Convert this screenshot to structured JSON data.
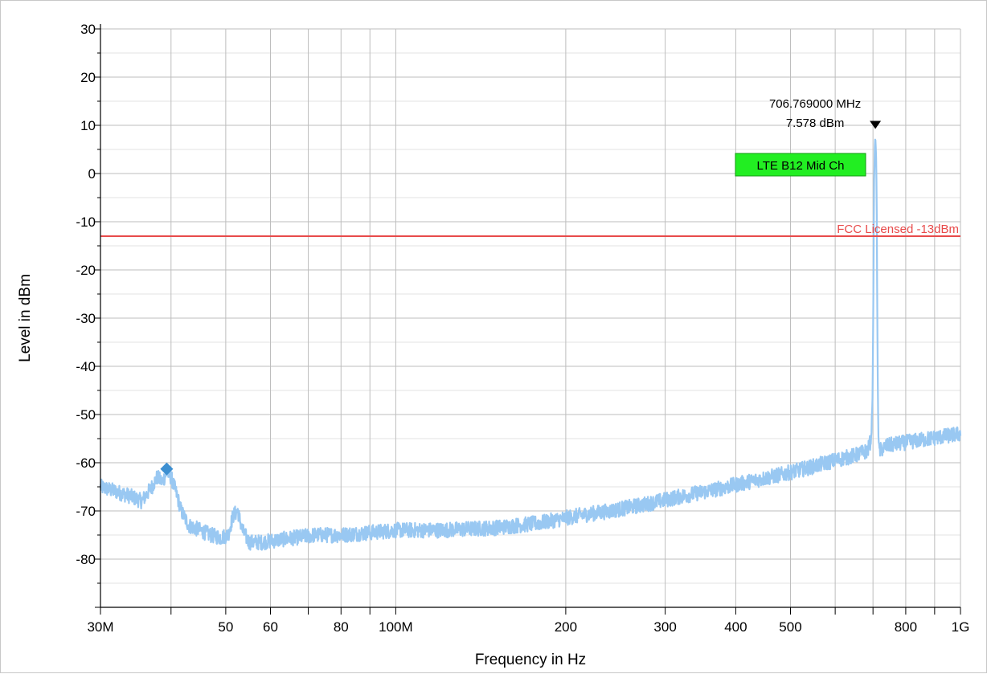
{
  "chart_data": {
    "type": "line",
    "xlabel": "Frequency in Hz",
    "ylabel": "Level in dBm",
    "x_scale": "log",
    "xlim_hz": [
      30000000,
      1000000000
    ],
    "ylim": [
      -90,
      30
    ],
    "grid": true,
    "x_ticks": [
      {
        "value": 30000000,
        "label": "30M"
      },
      {
        "value": 40000000,
        "label": ""
      },
      {
        "value": 50000000,
        "label": "50"
      },
      {
        "value": 60000000,
        "label": "60"
      },
      {
        "value": 70000000,
        "label": ""
      },
      {
        "value": 80000000,
        "label": "80"
      },
      {
        "value": 90000000,
        "label": ""
      },
      {
        "value": 100000000,
        "label": "100M"
      },
      {
        "value": 200000000,
        "label": "200"
      },
      {
        "value": 300000000,
        "label": "300"
      },
      {
        "value": 400000000,
        "label": "400"
      },
      {
        "value": 500000000,
        "label": "500"
      },
      {
        "value": 600000000,
        "label": ""
      },
      {
        "value": 700000000,
        "label": ""
      },
      {
        "value": 800000000,
        "label": "800"
      },
      {
        "value": 900000000,
        "label": ""
      },
      {
        "value": 1000000000,
        "label": "1G"
      }
    ],
    "y_ticks": [
      {
        "value": 30,
        "label": "30"
      },
      {
        "value": 20,
        "label": "20"
      },
      {
        "value": 10,
        "label": "10"
      },
      {
        "value": 0,
        "label": "0"
      },
      {
        "value": -10,
        "label": "-10"
      },
      {
        "value": -20,
        "label": "-20"
      },
      {
        "value": -30,
        "label": "-30"
      },
      {
        "value": -40,
        "label": "-40"
      },
      {
        "value": -50,
        "label": "-50"
      },
      {
        "value": -60,
        "label": "-60"
      },
      {
        "value": -70,
        "label": "-70"
      },
      {
        "value": -80,
        "label": "-80"
      }
    ],
    "series": [
      {
        "color": "#99c8f2",
        "points": [
          [
            30000000,
            -65
          ],
          [
            32000000,
            -66
          ],
          [
            34000000,
            -67
          ],
          [
            35500000,
            -68
          ],
          [
            37000000,
            -65
          ],
          [
            37800000,
            -63
          ],
          [
            38600000,
            -64
          ],
          [
            39300000,
            -62
          ],
          [
            40000000,
            -63
          ],
          [
            40800000,
            -66
          ],
          [
            41700000,
            -70
          ],
          [
            43000000,
            -73
          ],
          [
            45000000,
            -74
          ],
          [
            47000000,
            -75
          ],
          [
            49000000,
            -75.5
          ],
          [
            50500000,
            -75
          ],
          [
            51500000,
            -71
          ],
          [
            52500000,
            -70
          ],
          [
            53500000,
            -74
          ],
          [
            55000000,
            -76.5
          ],
          [
            58000000,
            -76.5
          ],
          [
            62000000,
            -76
          ],
          [
            67000000,
            -75.5
          ],
          [
            72000000,
            -75
          ],
          [
            80000000,
            -75
          ],
          [
            90000000,
            -74.5
          ],
          [
            100000000,
            -74
          ],
          [
            120000000,
            -74
          ],
          [
            150000000,
            -73.5
          ],
          [
            180000000,
            -72.5
          ],
          [
            210000000,
            -71
          ],
          [
            240000000,
            -70
          ],
          [
            280000000,
            -68.5
          ],
          [
            320000000,
            -67
          ],
          [
            370000000,
            -65.5
          ],
          [
            420000000,
            -64
          ],
          [
            480000000,
            -62.5
          ],
          [
            540000000,
            -61
          ],
          [
            600000000,
            -59.5
          ],
          [
            650000000,
            -58.5
          ],
          [
            685000000,
            -57.5
          ],
          [
            695000000,
            -55
          ],
          [
            699000000,
            -45
          ],
          [
            701000000,
            -25
          ],
          [
            703000000,
            -3
          ],
          [
            705000000,
            5
          ],
          [
            706769000,
            7.578
          ],
          [
            708500000,
            5
          ],
          [
            710500000,
            -3
          ],
          [
            712000000,
            -25
          ],
          [
            714000000,
            -45
          ],
          [
            716000000,
            -56
          ],
          [
            720000000,
            -57.5
          ],
          [
            740000000,
            -56.5
          ],
          [
            780000000,
            -56
          ],
          [
            830000000,
            -55.5
          ],
          [
            880000000,
            -55
          ],
          [
            940000000,
            -54.5
          ],
          [
            1000000000,
            -54
          ]
        ]
      }
    ],
    "limit_line": {
      "label": "FCC Licensed -13dBm",
      "value": -13,
      "color": "#e84a4a"
    },
    "peak_marker": {
      "freq_hz": 706769000,
      "level_dbm": 7.578,
      "freq_label": "706.769000 MHz",
      "level_label": "7.578 dBm"
    },
    "diamond_marker": {
      "freq_hz": 39300000,
      "level_dbm": -61.3,
      "color": "#3d8fd1"
    },
    "badge": {
      "text": "LTE B12 Mid Ch",
      "fill": "#22ee22",
      "border": "#119911"
    }
  }
}
